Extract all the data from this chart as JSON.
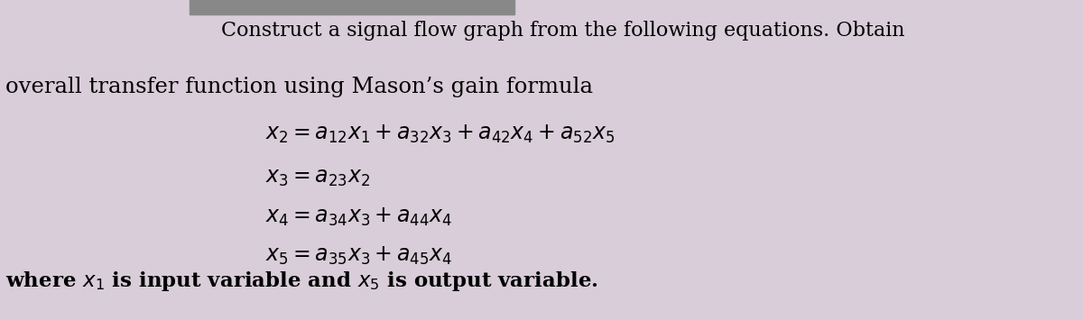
{
  "bg_color": "#d8cdd8",
  "top_bar_color": "#888888",
  "title_line1": "Construct a signal flow graph from the following equations. Obtain",
  "title_line2": "overall transfer function using Mason’s gain formula",
  "eq1": "$x_2 =a_{12}x_1 + a_{32}x_3 + a_{42}x_4 + a_{52}x_5$",
  "eq2": "$x_3 =a_{23}x_2$",
  "eq3": "$x_4 =a_{34}x_3 + a_{44}x_4$",
  "eq4": "$x_5 =a_{35}x_3 + a_{45}x_4$",
  "footer_plain": "where ",
  "footer_x1": "$x_1$",
  "footer_mid": " is input variable and ",
  "footer_x5": "$x_5$",
  "footer_end": " is output variable.",
  "title_fontsize": 16,
  "eq_fontsize": 17,
  "footer_fontsize": 16.5
}
